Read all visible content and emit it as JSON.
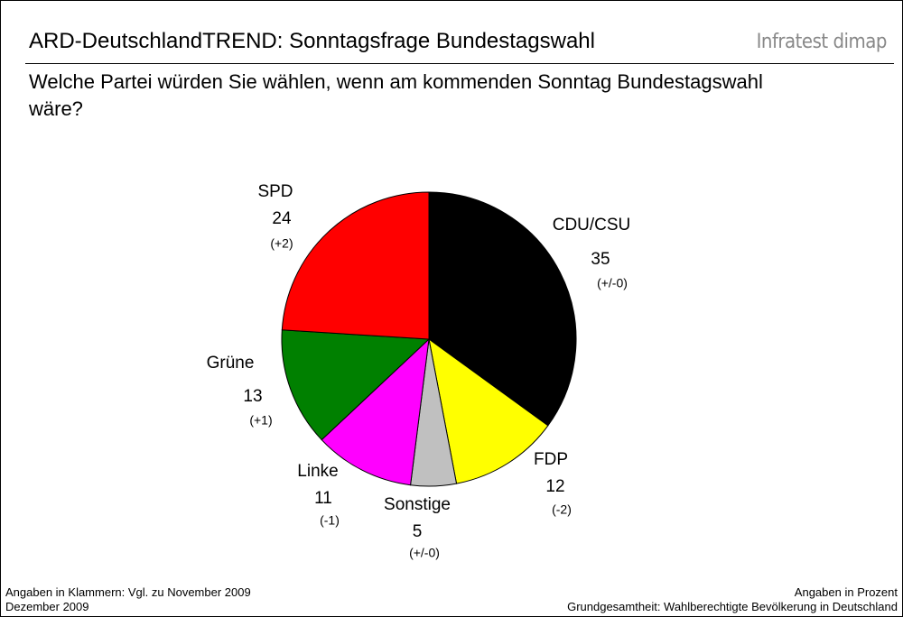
{
  "chart_data": {
    "type": "pie",
    "title": "ARD-DeutschlandTREND: Sonntagsfrage Bundestagswahl",
    "brand": "Infratest dimap",
    "subtitle": "Welche Partei würden Sie wählen, wenn am kommenden Sonntag Bundestagswahl wäre?",
    "categories": [
      "CDU/CSU",
      "FDP",
      "Sonstige",
      "Linke",
      "Grüne",
      "SPD"
    ],
    "values": [
      35,
      12,
      5,
      11,
      13,
      24
    ],
    "changes": [
      "(+/-0)",
      "(-2)",
      "(+/-0)",
      "(-1)",
      "(+1)",
      "(+2)"
    ],
    "colors": [
      "#000000",
      "#ffff00",
      "#c0c0c0",
      "#ff00ff",
      "#008000",
      "#ff0000"
    ],
    "footnotes_left": [
      "Angaben in Klammern: Vgl. zu November 2009",
      "Dezember 2009"
    ],
    "footnotes_right": [
      "Angaben in Prozent",
      "Grundgesamtheit: Wahlberechtigte Bevölkerung in Deutschland"
    ]
  }
}
